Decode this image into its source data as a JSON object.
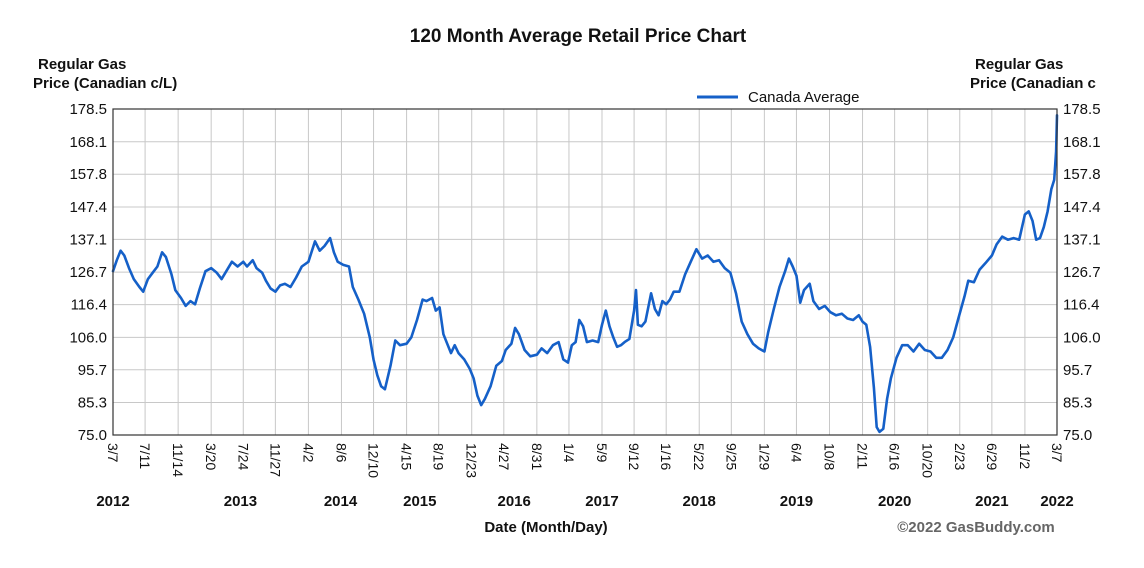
{
  "chart_data": {
    "type": "line",
    "title": "120 Month Average Retail Price Chart",
    "ylabel_left": [
      "Regular Gas",
      "Price (Canadian c/L)"
    ],
    "ylabel_right": [
      "Regular Gas",
      "Price (Canadian c"
    ],
    "xlabel": "Date (Month/Day)",
    "credit": "©2022 GasBuddy.com",
    "ylim": [
      75.0,
      178.5
    ],
    "y_ticks": [
      "178.5",
      "168.1",
      "157.8",
      "147.4",
      "137.1",
      "126.7",
      "116.4",
      "106.0",
      "95.7",
      "85.3",
      "75.0"
    ],
    "x_tick_labels": [
      "3/7",
      "7/11",
      "11/14",
      "3/20",
      "7/24",
      "11/27",
      "4/2",
      "8/6",
      "12/10",
      "4/15",
      "8/19",
      "12/23",
      "4/27",
      "8/31",
      "1/4",
      "5/9",
      "9/12",
      "1/16",
      "5/22",
      "9/25",
      "1/29",
      "6/4",
      "10/8",
      "2/11",
      "6/16",
      "10/20",
      "2/23",
      "6/29",
      "11/2",
      "3/7"
    ],
    "x_tick_years": [
      2012.18,
      2012.52,
      2012.87,
      2013.22,
      2013.56,
      2013.9,
      2014.25,
      2014.6,
      2014.94,
      2015.29,
      2015.63,
      2015.98,
      2016.32,
      2016.67,
      2017.01,
      2017.36,
      2017.7,
      2018.04,
      2018.39,
      2018.73,
      2019.08,
      2019.42,
      2019.77,
      2020.12,
      2020.46,
      2020.81,
      2021.15,
      2021.49,
      2021.84,
      2022.18
    ],
    "year_labels": [
      {
        "label": "2012",
        "x": 2012.18
      },
      {
        "label": "2013",
        "x": 2013.53
      },
      {
        "label": "2014",
        "x": 2014.59
      },
      {
        "label": "2015",
        "x": 2015.43
      },
      {
        "label": "2016",
        "x": 2016.43
      },
      {
        "label": "2017",
        "x": 2017.36
      },
      {
        "label": "2018",
        "x": 2018.39
      },
      {
        "label": "2019",
        "x": 2019.42
      },
      {
        "label": "2020",
        "x": 2020.46
      },
      {
        "label": "2021",
        "x": 2021.49
      },
      {
        "label": "2022",
        "x": 2022.18
      }
    ],
    "x_range": [
      2012.18,
      2022.18
    ],
    "grid": true,
    "legend_position": "top-right",
    "series": [
      {
        "name": "Canada Average",
        "color": "#1560c8",
        "points": [
          [
            2012.18,
            127.0
          ],
          [
            2012.22,
            130.5
          ],
          [
            2012.26,
            133.5
          ],
          [
            2012.3,
            132.0
          ],
          [
            2012.35,
            128.0
          ],
          [
            2012.4,
            124.5
          ],
          [
            2012.46,
            122.0
          ],
          [
            2012.5,
            120.5
          ],
          [
            2012.55,
            124.5
          ],
          [
            2012.6,
            126.5
          ],
          [
            2012.65,
            128.5
          ],
          [
            2012.7,
            133.0
          ],
          [
            2012.74,
            131.5
          ],
          [
            2012.8,
            126.0
          ],
          [
            2012.84,
            121.0
          ],
          [
            2012.9,
            118.5
          ],
          [
            2012.95,
            116.0
          ],
          [
            2013.0,
            117.5
          ],
          [
            2013.05,
            116.5
          ],
          [
            2013.1,
            121.5
          ],
          [
            2013.16,
            127.0
          ],
          [
            2013.22,
            128.0
          ],
          [
            2013.28,
            126.5
          ],
          [
            2013.33,
            124.5
          ],
          [
            2013.38,
            127.0
          ],
          [
            2013.44,
            130.0
          ],
          [
            2013.5,
            128.5
          ],
          [
            2013.56,
            130.0
          ],
          [
            2013.6,
            128.5
          ],
          [
            2013.66,
            130.5
          ],
          [
            2013.7,
            128.0
          ],
          [
            2013.76,
            126.5
          ],
          [
            2013.8,
            124.0
          ],
          [
            2013.85,
            121.5
          ],
          [
            2013.9,
            120.5
          ],
          [
            2013.95,
            122.5
          ],
          [
            2014.0,
            123.0
          ],
          [
            2014.06,
            122.0
          ],
          [
            2014.12,
            125.0
          ],
          [
            2014.18,
            128.5
          ],
          [
            2014.25,
            130.0
          ],
          [
            2014.32,
            136.5
          ],
          [
            2014.37,
            133.5
          ],
          [
            2014.42,
            135.0
          ],
          [
            2014.48,
            137.5
          ],
          [
            2014.52,
            133.0
          ],
          [
            2014.56,
            130.0
          ],
          [
            2014.62,
            129.0
          ],
          [
            2014.68,
            128.5
          ],
          [
            2014.72,
            122.0
          ],
          [
            2014.78,
            118.0
          ],
          [
            2014.84,
            113.5
          ],
          [
            2014.9,
            106.0
          ],
          [
            2014.94,
            99.0
          ],
          [
            2014.98,
            94.0
          ],
          [
            2015.02,
            90.5
          ],
          [
            2015.06,
            89.5
          ],
          [
            2015.12,
            97.0
          ],
          [
            2015.17,
            105.0
          ],
          [
            2015.22,
            103.5
          ],
          [
            2015.29,
            104.0
          ],
          [
            2015.34,
            106.0
          ],
          [
            2015.4,
            111.5
          ],
          [
            2015.46,
            118.0
          ],
          [
            2015.5,
            117.5
          ],
          [
            2015.56,
            118.5
          ],
          [
            2015.6,
            114.5
          ],
          [
            2015.64,
            115.5
          ],
          [
            2015.68,
            107.0
          ],
          [
            2015.72,
            104.0
          ],
          [
            2015.76,
            101.0
          ],
          [
            2015.8,
            103.5
          ],
          [
            2015.84,
            101.0
          ],
          [
            2015.9,
            99.0
          ],
          [
            2015.96,
            96.0
          ],
          [
            2016.0,
            93.0
          ],
          [
            2016.04,
            87.5
          ],
          [
            2016.08,
            84.5
          ],
          [
            2016.12,
            86.5
          ],
          [
            2016.18,
            90.5
          ],
          [
            2016.24,
            97.0
          ],
          [
            2016.3,
            98.5
          ],
          [
            2016.34,
            102.0
          ],
          [
            2016.4,
            104.0
          ],
          [
            2016.44,
            109.0
          ],
          [
            2016.48,
            107.0
          ],
          [
            2016.54,
            102.0
          ],
          [
            2016.6,
            100.0
          ],
          [
            2016.67,
            100.5
          ],
          [
            2016.72,
            102.5
          ],
          [
            2016.78,
            101.0
          ],
          [
            2016.84,
            103.5
          ],
          [
            2016.9,
            104.5
          ],
          [
            2016.95,
            99.0
          ],
          [
            2017.0,
            98.0
          ],
          [
            2017.04,
            103.5
          ],
          [
            2017.08,
            104.5
          ],
          [
            2017.12,
            111.5
          ],
          [
            2017.16,
            109.5
          ],
          [
            2017.2,
            104.5
          ],
          [
            2017.26,
            105.0
          ],
          [
            2017.32,
            104.5
          ],
          [
            2017.36,
            110.0
          ],
          [
            2017.4,
            114.5
          ],
          [
            2017.44,
            109.5
          ],
          [
            2017.48,
            106.0
          ],
          [
            2017.52,
            103.0
          ],
          [
            2017.56,
            103.5
          ],
          [
            2017.6,
            104.5
          ],
          [
            2017.65,
            105.5
          ],
          [
            2017.7,
            114.5
          ],
          [
            2017.72,
            121.0
          ],
          [
            2017.74,
            110.0
          ],
          [
            2017.78,
            109.5
          ],
          [
            2017.82,
            111.0
          ],
          [
            2017.88,
            120.0
          ],
          [
            2017.92,
            115.0
          ],
          [
            2017.96,
            113.0
          ],
          [
            2018.0,
            117.5
          ],
          [
            2018.04,
            116.5
          ],
          [
            2018.08,
            118.0
          ],
          [
            2018.12,
            120.5
          ],
          [
            2018.18,
            120.5
          ],
          [
            2018.24,
            126.0
          ],
          [
            2018.3,
            130.0
          ],
          [
            2018.36,
            134.0
          ],
          [
            2018.42,
            131.0
          ],
          [
            2018.48,
            132.0
          ],
          [
            2018.54,
            130.0
          ],
          [
            2018.6,
            130.5
          ],
          [
            2018.66,
            128.0
          ],
          [
            2018.72,
            126.5
          ],
          [
            2018.78,
            120.0
          ],
          [
            2018.84,
            111.0
          ],
          [
            2018.9,
            107.0
          ],
          [
            2018.96,
            104.0
          ],
          [
            2019.02,
            102.5
          ],
          [
            2019.08,
            101.5
          ],
          [
            2019.12,
            107.5
          ],
          [
            2019.18,
            115.0
          ],
          [
            2019.24,
            122.0
          ],
          [
            2019.3,
            127.0
          ],
          [
            2019.34,
            131.0
          ],
          [
            2019.38,
            128.5
          ],
          [
            2019.42,
            125.5
          ],
          [
            2019.46,
            117.0
          ],
          [
            2019.5,
            121.0
          ],
          [
            2019.56,
            123.0
          ],
          [
            2019.6,
            117.5
          ],
          [
            2019.66,
            115.0
          ],
          [
            2019.72,
            116.0
          ],
          [
            2019.78,
            114.0
          ],
          [
            2019.84,
            113.0
          ],
          [
            2019.9,
            113.5
          ],
          [
            2019.96,
            112.0
          ],
          [
            2020.02,
            111.5
          ],
          [
            2020.08,
            113.0
          ],
          [
            2020.12,
            111.0
          ],
          [
            2020.16,
            110.0
          ],
          [
            2020.2,
            103.0
          ],
          [
            2020.24,
            90.0
          ],
          [
            2020.27,
            77.5
          ],
          [
            2020.3,
            76.0
          ],
          [
            2020.34,
            77.0
          ],
          [
            2020.38,
            86.5
          ],
          [
            2020.42,
            93.0
          ],
          [
            2020.48,
            99.5
          ],
          [
            2020.54,
            103.5
          ],
          [
            2020.6,
            103.5
          ],
          [
            2020.66,
            101.5
          ],
          [
            2020.72,
            104.0
          ],
          [
            2020.78,
            102.0
          ],
          [
            2020.84,
            101.5
          ],
          [
            2020.9,
            99.5
          ],
          [
            2020.96,
            99.5
          ],
          [
            2021.02,
            102.0
          ],
          [
            2021.08,
            106.0
          ],
          [
            2021.14,
            112.5
          ],
          [
            2021.2,
            119.0
          ],
          [
            2021.24,
            124.0
          ],
          [
            2021.3,
            123.5
          ],
          [
            2021.36,
            127.5
          ],
          [
            2021.42,
            129.5
          ],
          [
            2021.49,
            132.0
          ],
          [
            2021.54,
            135.5
          ],
          [
            2021.6,
            138.0
          ],
          [
            2021.66,
            137.0
          ],
          [
            2021.72,
            137.5
          ],
          [
            2021.78,
            137.0
          ],
          [
            2021.84,
            145.0
          ],
          [
            2021.88,
            146.0
          ],
          [
            2021.92,
            143.0
          ],
          [
            2021.96,
            137.0
          ],
          [
            2022.0,
            137.5
          ],
          [
            2022.04,
            141.0
          ],
          [
            2022.08,
            146.0
          ],
          [
            2022.12,
            153.0
          ],
          [
            2022.15,
            156.0
          ],
          [
            2022.17,
            165.0
          ],
          [
            2022.18,
            176.5
          ]
        ]
      }
    ]
  }
}
